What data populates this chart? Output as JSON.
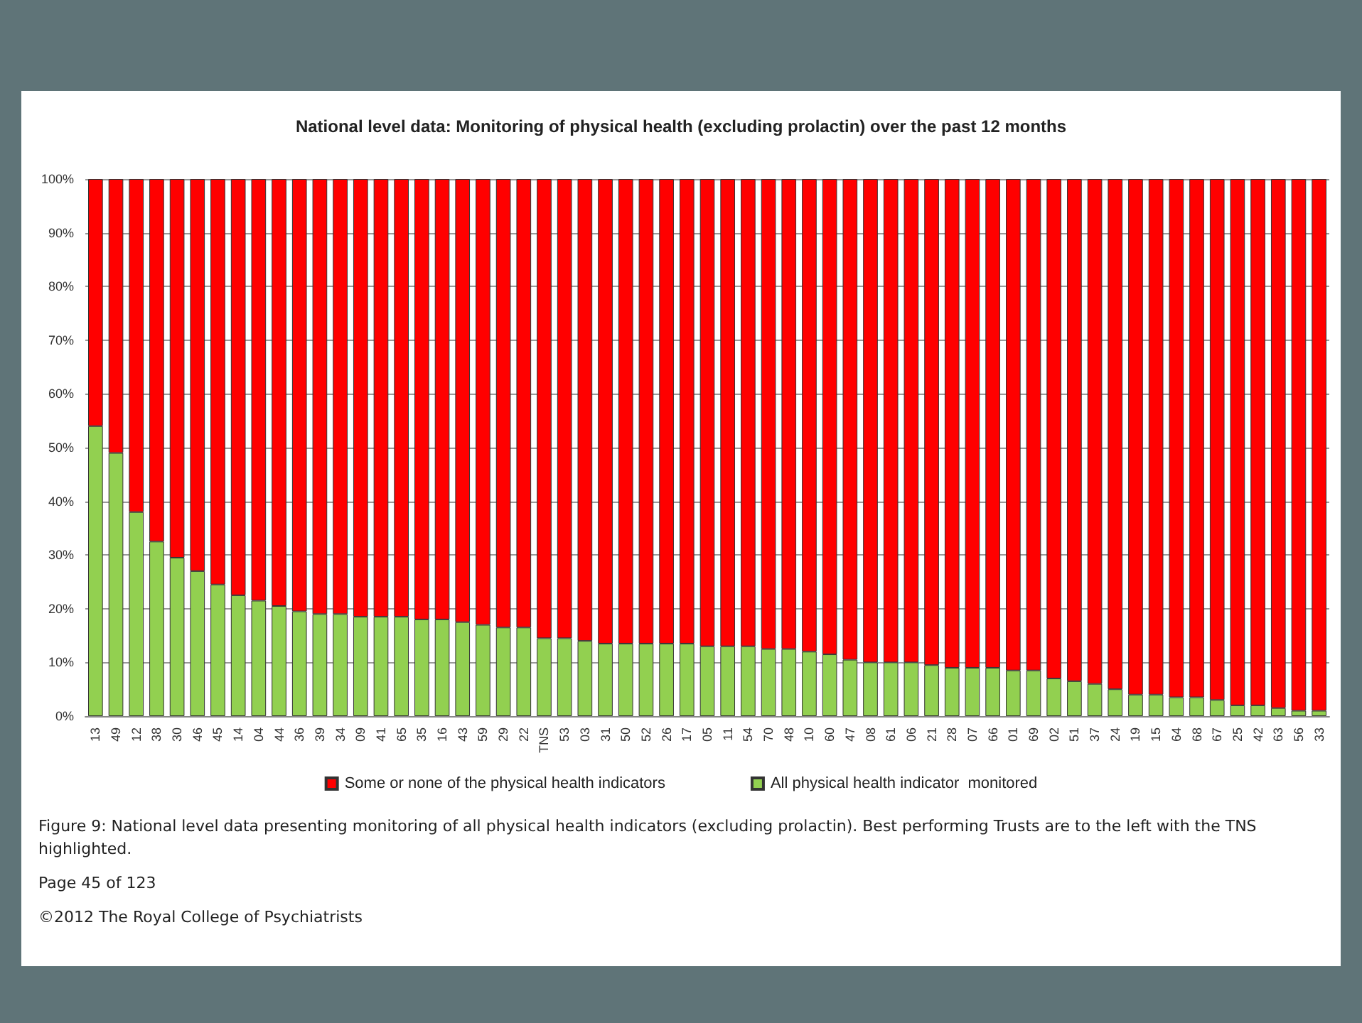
{
  "chart_data": {
    "type": "bar",
    "stacked": true,
    "title": "National level data: Monitoring of physical health (excluding prolactin) over the past 12 months",
    "categories": [
      "13",
      "49",
      "12",
      "38",
      "30",
      "46",
      "45",
      "14",
      "04",
      "44",
      "36",
      "39",
      "34",
      "09",
      "41",
      "65",
      "35",
      "16",
      "43",
      "59",
      "29",
      "22",
      "TNS",
      "53",
      "03",
      "31",
      "50",
      "52",
      "26",
      "17",
      "05",
      "11",
      "54",
      "70",
      "48",
      "10",
      "60",
      "47",
      "08",
      "61",
      "06",
      "21",
      "28",
      "07",
      "66",
      "01",
      "69",
      "02",
      "51",
      "37",
      "24",
      "19",
      "15",
      "64",
      "68",
      "67",
      "25",
      "42",
      "63",
      "56",
      "33"
    ],
    "series": [
      {
        "name": "All physical health indicator  monitored",
        "color": "#92d050",
        "values": [
          54,
          49,
          38,
          32.5,
          29.5,
          27,
          24.5,
          22.5,
          21.5,
          20.5,
          19.5,
          19,
          19,
          18.5,
          18.5,
          18.5,
          18,
          18,
          17.5,
          17,
          16.5,
          16.5,
          14.5,
          14.5,
          14,
          13.5,
          13.5,
          13.5,
          13.5,
          13.5,
          13,
          13,
          13,
          12.5,
          12.5,
          12,
          11.5,
          10.5,
          10,
          10,
          10,
          9.5,
          9,
          9,
          9,
          8.5,
          8.5,
          7,
          6.5,
          6,
          5,
          4,
          4,
          3.5,
          3.5,
          3,
          2,
          2,
          1.5,
          1,
          1
        ]
      },
      {
        "name": "Some or none of the physical health indicators",
        "color": "#ff0000",
        "values": [
          46,
          51,
          62,
          67.5,
          70.5,
          73,
          75.5,
          77.5,
          78.5,
          79.5,
          80.5,
          81,
          81,
          81.5,
          81.5,
          81.5,
          82,
          82,
          82.5,
          83,
          83.5,
          83.5,
          85.5,
          85.5,
          86,
          86.5,
          86.5,
          86.5,
          86.5,
          86.5,
          87,
          87,
          87,
          87.5,
          87.5,
          88,
          88.5,
          89.5,
          90,
          90,
          90,
          90.5,
          91,
          91,
          91,
          91.5,
          91.5,
          93,
          93.5,
          94,
          95,
          96,
          96,
          96.5,
          96.5,
          97,
          98,
          98,
          98.5,
          99,
          99
        ]
      }
    ],
    "ylim": [
      0,
      100
    ],
    "yticks": [
      {
        "value": 0,
        "label": "0%"
      },
      {
        "value": 10,
        "label": "10%"
      },
      {
        "value": 20,
        "label": "20%"
      },
      {
        "value": 30,
        "label": "30%"
      },
      {
        "value": 40,
        "label": "40%"
      },
      {
        "value": 50,
        "label": "50%"
      },
      {
        "value": 60,
        "label": "60%"
      },
      {
        "value": 70,
        "label": "70%"
      },
      {
        "value": 80,
        "label": "80%"
      },
      {
        "value": 90,
        "label": "90%"
      },
      {
        "value": 100,
        "label": "100%"
      }
    ],
    "grid": "y",
    "legend": "bottom",
    "annotations": [
      "Figure 9: National level data presenting monitoring of all physical health indicators (excluding prolactin). Best performing Trusts are to the left with the TNS highlighted.",
      "Page 45 of 123",
      "©2012 The Royal College of Psychiatrists"
    ]
  }
}
